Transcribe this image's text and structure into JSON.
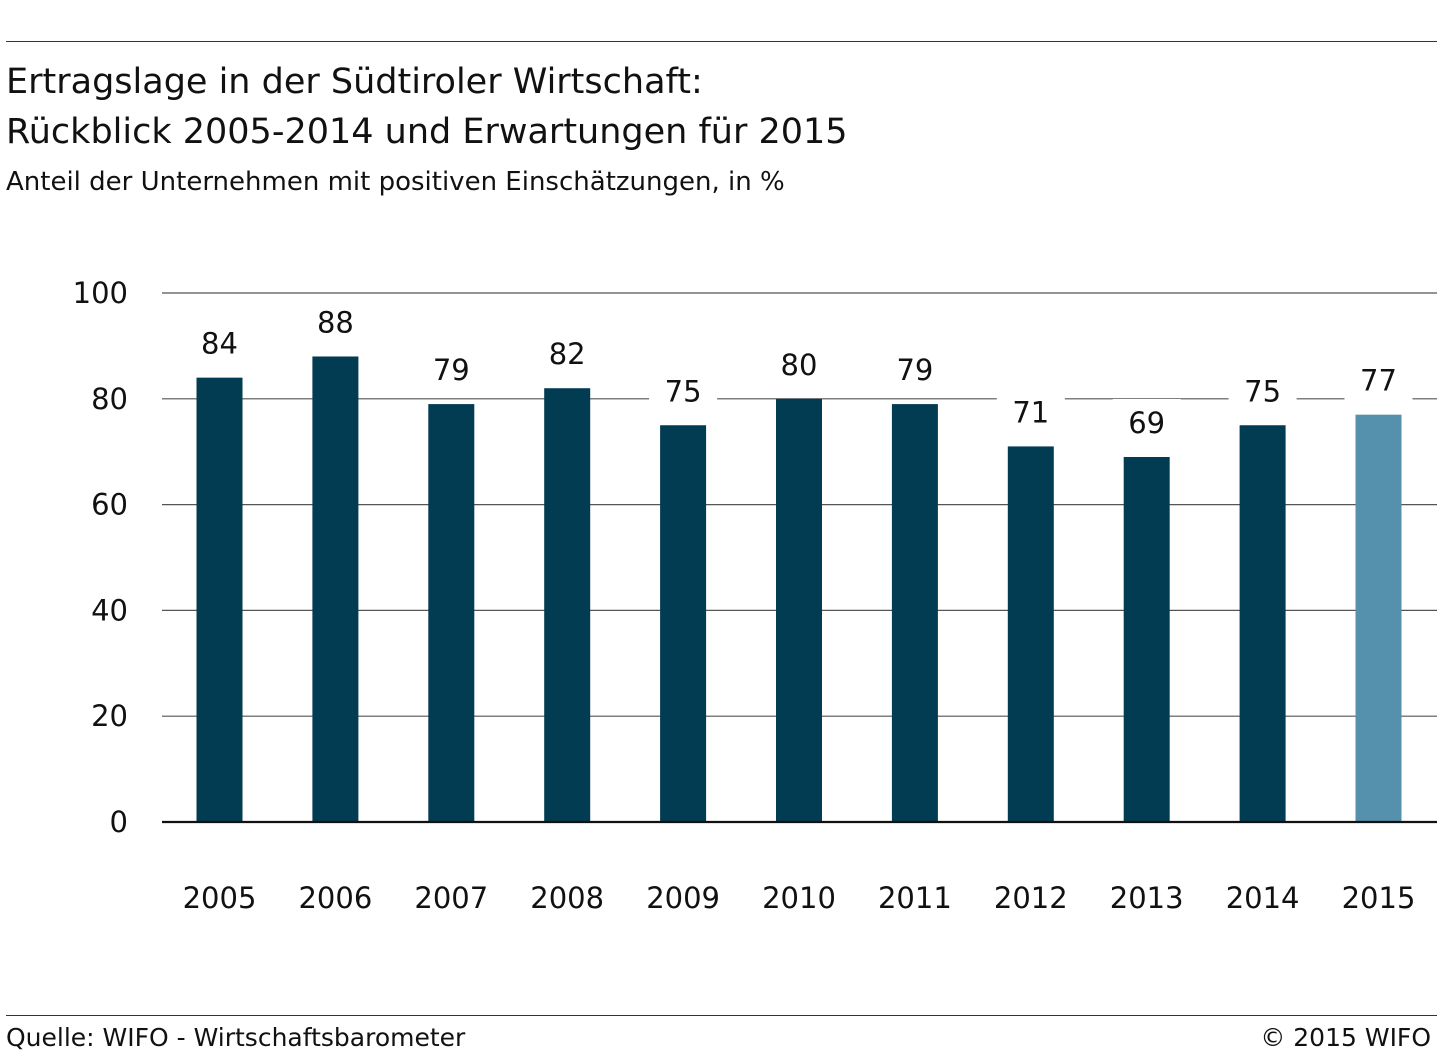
{
  "header": {
    "title_line1": "Ertragslage in der Südtiroler Wirtschaft:",
    "title_line2": "Rückblick 2005-2014 und Erwartungen für 2015",
    "subtitle": "Anteil der Unternehmen mit positiven Einschätzungen, in %"
  },
  "footer": {
    "source": "Quelle: WIFO - Wirtschaftsbarometer",
    "copyright": "© 2015 WIFO"
  },
  "chart_data": {
    "type": "bar",
    "title": "Ertragslage in der Südtiroler Wirtschaft: Rückblick 2005-2014 und Erwartungen für 2015",
    "subtitle": "Anteil der Unternehmen mit positiven Einschätzungen, in %",
    "categories": [
      "2005",
      "2006",
      "2007",
      "2008",
      "2009",
      "2010",
      "2011",
      "2012",
      "2013",
      "2014",
      "2015"
    ],
    "values": [
      84,
      88,
      79,
      82,
      75,
      80,
      79,
      71,
      69,
      75,
      77
    ],
    "ylim": [
      0,
      100
    ],
    "yticks": [
      0,
      20,
      40,
      60,
      80,
      100
    ],
    "grid": true,
    "colors": {
      "actual": "#023c52",
      "forecast": "#5591ac",
      "grid": "#555555",
      "axis": "#111111"
    },
    "forecast_categories": [
      "2015"
    ]
  }
}
